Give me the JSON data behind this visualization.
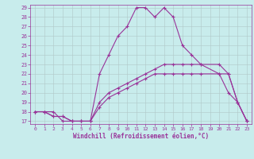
{
  "xlabel": "Windchill (Refroidissement éolien,°C)",
  "background_color": "#c8ecec",
  "grid_color": "#b0c8c8",
  "line_color": "#993399",
  "xmin": 0,
  "xmax": 23,
  "ymin": 17,
  "ymax": 29,
  "yticks": [
    17,
    18,
    19,
    20,
    21,
    22,
    23,
    24,
    25,
    26,
    27,
    28,
    29
  ],
  "xticks": [
    0,
    1,
    2,
    3,
    4,
    5,
    6,
    7,
    8,
    9,
    10,
    11,
    12,
    13,
    14,
    15,
    16,
    17,
    18,
    19,
    20,
    21,
    22,
    23
  ],
  "series1_x": [
    0,
    1,
    2,
    3,
    4,
    5,
    6,
    7,
    8,
    9,
    10,
    11,
    12,
    13,
    14,
    15,
    16,
    17,
    18,
    20,
    21,
    22,
    23
  ],
  "series1_y": [
    18,
    18,
    18,
    17,
    17,
    17,
    17,
    22,
    24,
    26,
    27,
    29,
    29,
    28,
    29,
    28,
    25,
    24,
    23,
    22,
    20,
    19,
    17
  ],
  "series2_x": [
    0,
    1,
    2,
    3,
    4,
    5,
    6,
    7,
    8,
    9,
    10,
    11,
    12,
    13,
    14,
    15,
    16,
    17,
    18,
    20,
    21,
    22,
    23
  ],
  "series2_y": [
    18,
    18,
    17.5,
    17.5,
    17,
    17,
    17,
    19,
    20,
    20.5,
    21,
    21.5,
    22,
    22.5,
    23,
    23,
    23,
    23,
    23,
    23,
    22,
    19,
    17
  ],
  "series3_x": [
    0,
    1,
    2,
    3,
    4,
    5,
    6,
    7,
    8,
    9,
    10,
    11,
    12,
    13,
    14,
    15,
    16,
    17,
    18,
    20,
    21,
    22,
    23
  ],
  "series3_y": [
    18,
    18,
    17.5,
    17.5,
    17,
    17,
    17,
    18.5,
    19.5,
    20,
    20.5,
    21,
    21.5,
    22,
    22,
    22,
    22,
    22,
    22,
    22,
    22,
    19,
    17
  ]
}
